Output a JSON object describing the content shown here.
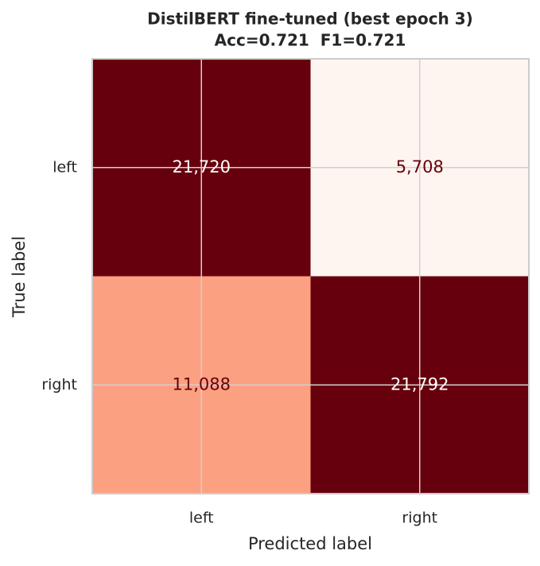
{
  "chart_data": {
    "type": "confusion_matrix",
    "title": "DistilBERT fine-tuned (best epoch 3)",
    "subtitle": "Acc=0.721  F1=0.721",
    "xlabel": "Predicted label",
    "ylabel": "True label",
    "x_categories": [
      "left",
      "right"
    ],
    "y_categories": [
      "left",
      "right"
    ],
    "values": [
      [
        21720,
        5708
      ],
      [
        11088,
        21792
      ]
    ],
    "value_labels": [
      [
        "21,720",
        "5,708"
      ],
      [
        "11,088",
        "21,792"
      ]
    ],
    "cell_colors": [
      [
        "#67000d",
        "#fff5f0"
      ],
      [
        "#fca082",
        "#67000d"
      ]
    ],
    "text_colors": [
      [
        "#ffffff",
        "#67000d"
      ],
      [
        "#67000d",
        "#ffffff"
      ]
    ],
    "grid": true
  }
}
